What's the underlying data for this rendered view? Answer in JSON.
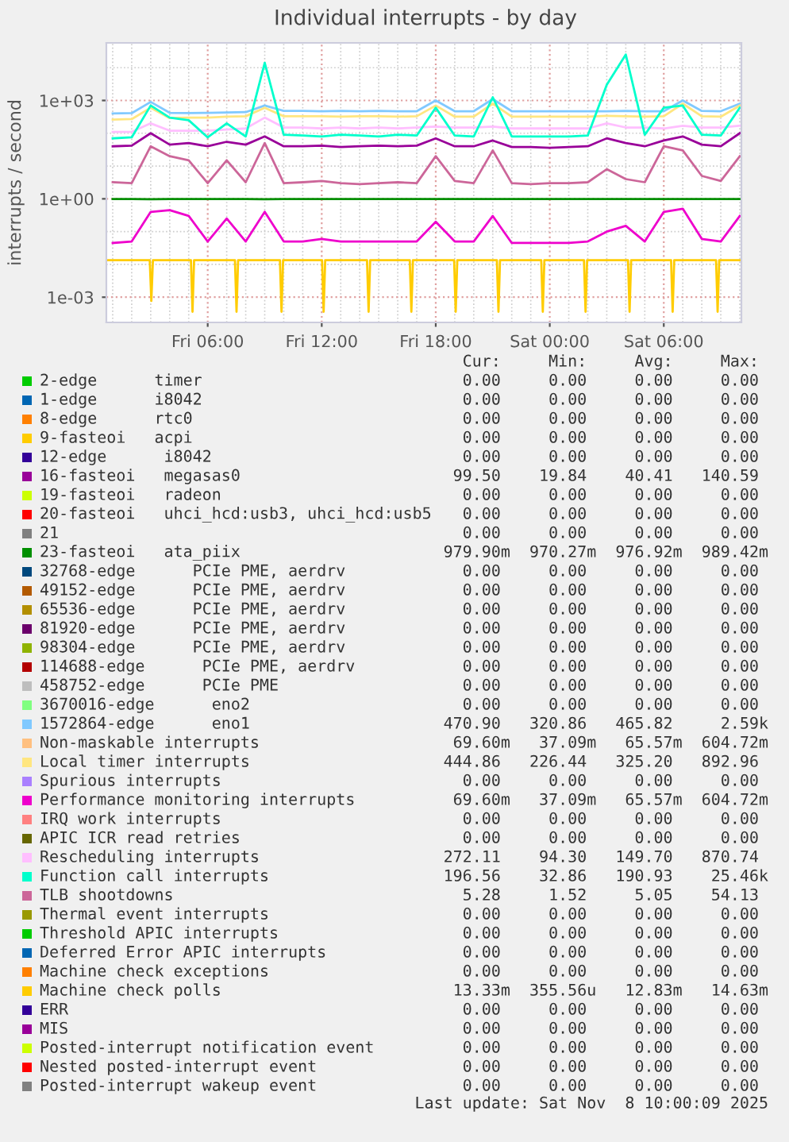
{
  "chart_data": {
    "type": "line",
    "title": "Individual interrupts - by day",
    "ylabel": "interrupts / second",
    "log": "y",
    "grid": true,
    "legend": "bottom",
    "xlim": [
      "2025-11-07T00:40",
      "2025-11-08T10:05"
    ],
    "xticks": [
      {
        "value": "2025-11-07T06:00",
        "label": "Fri 06:00"
      },
      {
        "value": "2025-11-07T12:00",
        "label": "Fri 12:00"
      },
      {
        "value": "2025-11-07T18:00",
        "label": "Fri 18:00"
      },
      {
        "value": "2025-11-08T00:00",
        "label": "Sat 00:00"
      },
      {
        "value": "2025-11-08T06:00",
        "label": "Sat 06:00"
      }
    ],
    "ylim": [
      0.00017,
      57000
    ],
    "yticks": [
      {
        "value": 0.001,
        "label": "1e-03"
      },
      {
        "value": 1,
        "label": "1e+00"
      },
      {
        "value": 1000,
        "label": "1e+03"
      }
    ],
    "x": [
      "2025-11-07T01:00",
      "2025-11-07T02:00",
      "2025-11-07T03:00",
      "2025-11-07T04:00",
      "2025-11-07T05:00",
      "2025-11-07T06:00",
      "2025-11-07T07:00",
      "2025-11-07T08:00",
      "2025-11-07T09:00",
      "2025-11-07T10:00",
      "2025-11-07T11:00",
      "2025-11-07T12:00",
      "2025-11-07T13:00",
      "2025-11-07T14:00",
      "2025-11-07T15:00",
      "2025-11-07T16:00",
      "2025-11-07T17:00",
      "2025-11-07T18:00",
      "2025-11-07T19:00",
      "2025-11-07T20:00",
      "2025-11-07T21:00",
      "2025-11-07T22:00",
      "2025-11-07T23:00",
      "2025-11-08T00:00",
      "2025-11-08T01:00",
      "2025-11-08T02:00",
      "2025-11-08T03:00",
      "2025-11-08T04:00",
      "2025-11-08T05:00",
      "2025-11-08T06:00",
      "2025-11-08T07:00",
      "2025-11-08T08:00",
      "2025-11-08T09:00",
      "2025-11-08T10:00"
    ],
    "series": [
      {
        "name": "2-edge      timer",
        "color": "#00cc00",
        "values": [
          null,
          null,
          null,
          null,
          null,
          null,
          null,
          null,
          null,
          null,
          null,
          null,
          null,
          null,
          null,
          null,
          null,
          null,
          null,
          null,
          null,
          null,
          null,
          null,
          null,
          null,
          null,
          null,
          null,
          null,
          null,
          null,
          null,
          null
        ]
      },
      {
        "name": "1-edge      i8042",
        "color": "#0066b3",
        "values": [
          null,
          null,
          null,
          null,
          null,
          null,
          null,
          null,
          null,
          null,
          null,
          null,
          null,
          null,
          null,
          null,
          null,
          null,
          null,
          null,
          null,
          null,
          null,
          null,
          null,
          null,
          null,
          null,
          null,
          null,
          null,
          null,
          null,
          null
        ]
      },
      {
        "name": "8-edge      rtc0",
        "color": "#ff8000",
        "values": [
          null,
          null,
          null,
          null,
          null,
          null,
          null,
          null,
          null,
          null,
          null,
          null,
          null,
          null,
          null,
          null,
          null,
          null,
          null,
          null,
          null,
          null,
          null,
          null,
          null,
          null,
          null,
          null,
          null,
          null,
          null,
          null,
          null,
          null
        ]
      },
      {
        "name": "9-fasteoi   acpi",
        "color": "#ffcc00",
        "values": [
          null,
          null,
          null,
          null,
          null,
          null,
          null,
          null,
          null,
          null,
          null,
          null,
          null,
          null,
          null,
          null,
          null,
          null,
          null,
          null,
          null,
          null,
          null,
          null,
          null,
          null,
          null,
          null,
          null,
          null,
          null,
          null,
          null,
          null
        ]
      },
      {
        "name": "12-edge      i8042",
        "color": "#330099",
        "values": [
          null,
          null,
          null,
          null,
          null,
          null,
          null,
          null,
          null,
          null,
          null,
          null,
          null,
          null,
          null,
          null,
          null,
          null,
          null,
          null,
          null,
          null,
          null,
          null,
          null,
          null,
          null,
          null,
          null,
          null,
          null,
          null,
          null,
          null
        ]
      },
      {
        "name": "16-fasteoi   megasas0",
        "color": "#990099",
        "values": [
          40,
          42,
          100,
          45,
          50,
          40,
          55,
          45,
          80,
          40,
          40,
          42,
          38,
          40,
          42,
          40,
          42,
          70,
          40,
          40,
          60,
          38,
          38,
          36,
          38,
          40,
          70,
          50,
          40,
          60,
          80,
          45,
          40,
          100
        ]
      },
      {
        "name": "19-fasteoi   radeon",
        "color": "#ccff00",
        "values": [
          null,
          null,
          null,
          null,
          null,
          null,
          null,
          null,
          null,
          null,
          null,
          null,
          null,
          null,
          null,
          null,
          null,
          null,
          null,
          null,
          null,
          null,
          null,
          null,
          null,
          null,
          null,
          null,
          null,
          null,
          null,
          null,
          null,
          null
        ]
      },
      {
        "name": "20-fasteoi   uhci_hcd:usb3, uhci_hcd:usb5",
        "color": "#ff0000",
        "values": [
          null,
          null,
          null,
          null,
          null,
          null,
          null,
          null,
          null,
          null,
          null,
          null,
          null,
          null,
          null,
          null,
          null,
          null,
          null,
          null,
          null,
          null,
          null,
          null,
          null,
          null,
          null,
          null,
          null,
          null,
          null,
          null,
          null,
          null
        ]
      },
      {
        "name": "21",
        "color": "#808080",
        "values": [
          null,
          null,
          null,
          null,
          null,
          null,
          null,
          null,
          null,
          null,
          null,
          null,
          null,
          null,
          null,
          null,
          null,
          null,
          null,
          null,
          null,
          null,
          null,
          null,
          null,
          null,
          null,
          null,
          null,
          null,
          null,
          null,
          null,
          null
        ]
      },
      {
        "name": "23-fasteoi   ata_piix",
        "color": "#008f00",
        "values": [
          0.98,
          0.98,
          0.97,
          0.98,
          0.98,
          0.98,
          0.98,
          0.98,
          0.97,
          0.98,
          0.98,
          0.98,
          0.98,
          0.98,
          0.98,
          0.98,
          0.98,
          0.98,
          0.98,
          0.98,
          0.98,
          0.98,
          0.98,
          0.98,
          0.98,
          0.98,
          0.98,
          0.98,
          0.98,
          0.98,
          0.98,
          0.98,
          0.98,
          0.98
        ]
      },
      {
        "name": "32768-edge      PCIe PME, aerdrv",
        "color": "#00487d",
        "values": [
          null,
          null,
          null,
          null,
          null,
          null,
          null,
          null,
          null,
          null,
          null,
          null,
          null,
          null,
          null,
          null,
          null,
          null,
          null,
          null,
          null,
          null,
          null,
          null,
          null,
          null,
          null,
          null,
          null,
          null,
          null,
          null,
          null,
          null
        ]
      },
      {
        "name": "49152-edge      PCIe PME, aerdrv",
        "color": "#b35a00",
        "values": [
          null,
          null,
          null,
          null,
          null,
          null,
          null,
          null,
          null,
          null,
          null,
          null,
          null,
          null,
          null,
          null,
          null,
          null,
          null,
          null,
          null,
          null,
          null,
          null,
          null,
          null,
          null,
          null,
          null,
          null,
          null,
          null,
          null,
          null
        ]
      },
      {
        "name": "65536-edge      PCIe PME, aerdrv",
        "color": "#b38f00",
        "values": [
          null,
          null,
          null,
          null,
          null,
          null,
          null,
          null,
          null,
          null,
          null,
          null,
          null,
          null,
          null,
          null,
          null,
          null,
          null,
          null,
          null,
          null,
          null,
          null,
          null,
          null,
          null,
          null,
          null,
          null,
          null,
          null,
          null,
          null
        ]
      },
      {
        "name": "81920-edge      PCIe PME, aerdrv",
        "color": "#6b006b",
        "values": [
          null,
          null,
          null,
          null,
          null,
          null,
          null,
          null,
          null,
          null,
          null,
          null,
          null,
          null,
          null,
          null,
          null,
          null,
          null,
          null,
          null,
          null,
          null,
          null,
          null,
          null,
          null,
          null,
          null,
          null,
          null,
          null,
          null,
          null
        ]
      },
      {
        "name": "98304-edge      PCIe PME, aerdrv",
        "color": "#8fb300",
        "values": [
          null,
          null,
          null,
          null,
          null,
          null,
          null,
          null,
          null,
          null,
          null,
          null,
          null,
          null,
          null,
          null,
          null,
          null,
          null,
          null,
          null,
          null,
          null,
          null,
          null,
          null,
          null,
          null,
          null,
          null,
          null,
          null,
          null,
          null
        ]
      },
      {
        "name": "114688-edge      PCIe PME, aerdrv",
        "color": "#b30000",
        "values": [
          null,
          null,
          null,
          null,
          null,
          null,
          null,
          null,
          null,
          null,
          null,
          null,
          null,
          null,
          null,
          null,
          null,
          null,
          null,
          null,
          null,
          null,
          null,
          null,
          null,
          null,
          null,
          null,
          null,
          null,
          null,
          null,
          null,
          null
        ]
      },
      {
        "name": "458752-edge      PCIe PME",
        "color": "#bebebe",
        "values": [
          null,
          null,
          null,
          null,
          null,
          null,
          null,
          null,
          null,
          null,
          null,
          null,
          null,
          null,
          null,
          null,
          null,
          null,
          null,
          null,
          null,
          null,
          null,
          null,
          null,
          null,
          null,
          null,
          null,
          null,
          null,
          null,
          null,
          null
        ]
      },
      {
        "name": "3670016-edge      eno2",
        "color": "#80ff80",
        "values": [
          null,
          null,
          null,
          null,
          null,
          null,
          null,
          null,
          null,
          null,
          null,
          null,
          null,
          null,
          null,
          null,
          null,
          null,
          null,
          null,
          null,
          null,
          null,
          null,
          null,
          null,
          null,
          null,
          null,
          null,
          null,
          null,
          null,
          null
        ]
      },
      {
        "name": "1572864-edge      eno1",
        "color": "#80c9ff",
        "values": [
          400,
          410,
          900,
          420,
          410,
          420,
          430,
          440,
          700,
          480,
          480,
          470,
          480,
          470,
          480,
          470,
          470,
          1000,
          470,
          470,
          1100,
          470,
          470,
          470,
          470,
          470,
          470,
          480,
          470,
          470,
          1000,
          480,
          470,
          800
        ]
      },
      {
        "name": "Non-maskable interrupts",
        "color": "#ffc080",
        "values": [
          null,
          null,
          null,
          null,
          null,
          null,
          null,
          null,
          null,
          null,
          null,
          null,
          null,
          null,
          null,
          null,
          null,
          null,
          null,
          null,
          null,
          null,
          null,
          null,
          null,
          null,
          null,
          null,
          null,
          null,
          null,
          null,
          null,
          null
        ]
      },
      {
        "name": "Local timer interrupts",
        "color": "#ffe680",
        "values": [
          260,
          270,
          600,
          290,
          300,
          300,
          320,
          330,
          600,
          330,
          330,
          330,
          320,
          330,
          330,
          320,
          330,
          700,
          320,
          320,
          800,
          320,
          320,
          320,
          320,
          320,
          340,
          330,
          320,
          330,
          800,
          330,
          320,
          700
        ]
      },
      {
        "name": "Spurious interrupts",
        "color": "#aa80ff",
        "values": [
          null,
          null,
          null,
          null,
          null,
          null,
          null,
          null,
          null,
          null,
          null,
          null,
          null,
          null,
          null,
          null,
          null,
          null,
          null,
          null,
          null,
          null,
          null,
          null,
          null,
          null,
          null,
          null,
          null,
          null,
          null,
          null,
          null,
          null
        ]
      },
      {
        "name": "Performance monitoring interrupts",
        "color": "#ee00cc",
        "values": [
          0.045,
          0.05,
          0.4,
          0.45,
          0.3,
          0.05,
          0.25,
          0.05,
          0.4,
          0.05,
          0.05,
          0.06,
          0.05,
          0.05,
          0.05,
          0.05,
          0.05,
          0.2,
          0.05,
          0.05,
          0.3,
          0.045,
          0.045,
          0.045,
          0.045,
          0.05,
          0.1,
          0.15,
          0.05,
          0.4,
          0.5,
          0.06,
          0.05,
          0.3
        ]
      },
      {
        "name": "IRQ work interrupts",
        "color": "#ff8080",
        "values": [
          null,
          null,
          null,
          null,
          null,
          null,
          null,
          null,
          null,
          null,
          null,
          null,
          null,
          null,
          null,
          null,
          null,
          null,
          null,
          null,
          null,
          null,
          null,
          null,
          null,
          null,
          null,
          null,
          null,
          null,
          null,
          null,
          null,
          null
        ]
      },
      {
        "name": "APIC ICR read retries",
        "color": "#666600",
        "values": [
          null,
          null,
          null,
          null,
          null,
          null,
          null,
          null,
          null,
          null,
          null,
          null,
          null,
          null,
          null,
          null,
          null,
          null,
          null,
          null,
          null,
          null,
          null,
          null,
          null,
          null,
          null,
          null,
          null,
          null,
          null,
          null,
          null,
          null
        ]
      },
      {
        "name": "Rescheduling interrupts",
        "color": "#ffbfff",
        "values": [
          110,
          110,
          200,
          120,
          120,
          120,
          130,
          140,
          300,
          150,
          150,
          140,
          150,
          140,
          150,
          140,
          150,
          160,
          150,
          150,
          160,
          140,
          140,
          140,
          140,
          140,
          200,
          150,
          150,
          140,
          170,
          150,
          150,
          170
        ]
      },
      {
        "name": "Function call interrupts",
        "color": "#00ffcc",
        "values": [
          70,
          75,
          700,
          300,
          250,
          75,
          200,
          80,
          14000,
          90,
          85,
          80,
          90,
          85,
          80,
          90,
          85,
          600,
          85,
          80,
          1250,
          80,
          80,
          80,
          80,
          85,
          3000,
          25000,
          90,
          600,
          700,
          90,
          85,
          600
        ]
      },
      {
        "name": "TLB shootdowns",
        "color": "#cc6699",
        "values": [
          3.2,
          3.0,
          40,
          20,
          15,
          3.0,
          15,
          3.2,
          50,
          3.0,
          3.2,
          3.5,
          3.0,
          2.8,
          3.0,
          3.2,
          3.0,
          20,
          3.5,
          3.0,
          30,
          3.0,
          2.8,
          3.0,
          3.0,
          3.2,
          8,
          4,
          3.2,
          40,
          30,
          5,
          3.5,
          20
        ]
      },
      {
        "name": "Thermal event interrupts",
        "color": "#999900",
        "values": [
          null,
          null,
          null,
          null,
          null,
          null,
          null,
          null,
          null,
          null,
          null,
          null,
          null,
          null,
          null,
          null,
          null,
          null,
          null,
          null,
          null,
          null,
          null,
          null,
          null,
          null,
          null,
          null,
          null,
          null,
          null,
          null,
          null,
          null
        ]
      },
      {
        "name": "Threshold APIC interrupts",
        "color": "#00cc00",
        "values": [
          null,
          null,
          null,
          null,
          null,
          null,
          null,
          null,
          null,
          null,
          null,
          null,
          null,
          null,
          null,
          null,
          null,
          null,
          null,
          null,
          null,
          null,
          null,
          null,
          null,
          null,
          null,
          null,
          null,
          null,
          null,
          null,
          null,
          null
        ]
      },
      {
        "name": "Deferred Error APIC interrupts",
        "color": "#0066b3",
        "values": [
          null,
          null,
          null,
          null,
          null,
          null,
          null,
          null,
          null,
          null,
          null,
          null,
          null,
          null,
          null,
          null,
          null,
          null,
          null,
          null,
          null,
          null,
          null,
          null,
          null,
          null,
          null,
          null,
          null,
          null,
          null,
          null,
          null,
          null
        ]
      },
      {
        "name": "Machine check exceptions",
        "color": "#ff8000",
        "values": [
          null,
          null,
          null,
          null,
          null,
          null,
          null,
          null,
          null,
          null,
          null,
          null,
          null,
          null,
          null,
          null,
          null,
          null,
          null,
          null,
          null,
          null,
          null,
          null,
          null,
          null,
          null,
          null,
          null,
          null,
          null,
          null,
          null,
          null
        ]
      },
      {
        "name": "Machine check polls",
        "color": "#ffcc00",
        "x": [
          "2025-11-07T00:40",
          "2025-11-07T02:57",
          "2025-11-07T03:02",
          "2025-11-07T03:07",
          "2025-11-07T05:07",
          "2025-11-07T05:12",
          "2025-11-07T05:17",
          "2025-11-07T07:26",
          "2025-11-07T07:31",
          "2025-11-07T07:36",
          "2025-11-07T09:48",
          "2025-11-07T09:53",
          "2025-11-07T09:58",
          "2025-11-07T12:01",
          "2025-11-07T12:06",
          "2025-11-07T12:11",
          "2025-11-07T14:23",
          "2025-11-07T14:28",
          "2025-11-07T14:33",
          "2025-11-07T16:38",
          "2025-11-07T16:43",
          "2025-11-07T16:48",
          "2025-11-07T18:58",
          "2025-11-07T19:03",
          "2025-11-07T19:08",
          "2025-11-07T21:13",
          "2025-11-07T21:18",
          "2025-11-07T21:23",
          "2025-11-07T23:33",
          "2025-11-07T23:38",
          "2025-11-07T23:43",
          "2025-11-08T01:48",
          "2025-11-08T01:53",
          "2025-11-08T01:58",
          "2025-11-08T04:07",
          "2025-11-08T04:12",
          "2025-11-08T04:17",
          "2025-11-08T06:23",
          "2025-11-08T06:28",
          "2025-11-08T06:33",
          "2025-11-08T08:45",
          "2025-11-08T08:50",
          "2025-11-08T08:55",
          "2025-11-08T10:00"
        ],
        "values": [
          0.0135,
          0.0135,
          0.00077,
          0.0135,
          0.0135,
          0.00036,
          0.0135,
          0.0135,
          0.00036,
          0.0135,
          0.0135,
          0.00036,
          0.0135,
          0.0135,
          0.00036,
          0.0135,
          0.0135,
          0.00036,
          0.0135,
          0.0135,
          0.00036,
          0.0135,
          0.0135,
          0.00036,
          0.0135,
          0.0135,
          0.00036,
          0.0135,
          0.0135,
          0.00036,
          0.0135,
          0.0135,
          0.00036,
          0.0135,
          0.0135,
          0.00036,
          0.0135,
          0.0135,
          0.00036,
          0.0135,
          0.0135,
          0.00036,
          0.0135,
          0.0135
        ]
      },
      {
        "name": "ERR",
        "color": "#330099",
        "values": [
          null,
          null,
          null,
          null,
          null,
          null,
          null,
          null,
          null,
          null,
          null,
          null,
          null,
          null,
          null,
          null,
          null,
          null,
          null,
          null,
          null,
          null,
          null,
          null,
          null,
          null,
          null,
          null,
          null,
          null,
          null,
          null,
          null,
          null
        ]
      },
      {
        "name": "MIS",
        "color": "#990099",
        "values": [
          null,
          null,
          null,
          null,
          null,
          null,
          null,
          null,
          null,
          null,
          null,
          null,
          null,
          null,
          null,
          null,
          null,
          null,
          null,
          null,
          null,
          null,
          null,
          null,
          null,
          null,
          null,
          null,
          null,
          null,
          null,
          null,
          null,
          null
        ]
      },
      {
        "name": "Posted-interrupt notification event",
        "color": "#ccff00",
        "values": [
          null,
          null,
          null,
          null,
          null,
          null,
          null,
          null,
          null,
          null,
          null,
          null,
          null,
          null,
          null,
          null,
          null,
          null,
          null,
          null,
          null,
          null,
          null,
          null,
          null,
          null,
          null,
          null,
          null,
          null,
          null,
          null,
          null,
          null
        ]
      },
      {
        "name": "Nested posted-interrupt event",
        "color": "#ff0000",
        "values": [
          null,
          null,
          null,
          null,
          null,
          null,
          null,
          null,
          null,
          null,
          null,
          null,
          null,
          null,
          null,
          null,
          null,
          null,
          null,
          null,
          null,
          null,
          null,
          null,
          null,
          null,
          null,
          null,
          null,
          null,
          null,
          null,
          null,
          null
        ]
      },
      {
        "name": "Posted-interrupt wakeup event",
        "color": "#808080",
        "values": [
          null,
          null,
          null,
          null,
          null,
          null,
          null,
          null,
          null,
          null,
          null,
          null,
          null,
          null,
          null,
          null,
          null,
          null,
          null,
          null,
          null,
          null,
          null,
          null,
          null,
          null,
          null,
          null,
          null,
          null,
          null,
          null,
          null,
          null
        ]
      }
    ],
    "annotations": [
      "Cur:     Min:     Avg:     Max:",
      "0.00     0.00     0.00     0.00",
      "0.00     0.00     0.00     0.00",
      "0.00     0.00     0.00     0.00",
      "0.00     0.00     0.00     0.00",
      "0.00     0.00     0.00     0.00",
      "99.50    19.84    40.41   140.59",
      "0.00     0.00     0.00     0.00",
      "0.00     0.00     0.00     0.00",
      "0.00     0.00     0.00     0.00",
      "979.90m  970.27m  976.92m  989.42m",
      "0.00     0.00     0.00     0.00",
      "0.00     0.00     0.00     0.00",
      "0.00     0.00     0.00     0.00",
      "0.00     0.00     0.00     0.00",
      "0.00     0.00     0.00     0.00",
      "0.00     0.00     0.00     0.00",
      "0.00     0.00     0.00     0.00",
      "0.00     0.00     0.00     0.00",
      "470.90   320.86   465.82     2.59k",
      "69.60m   37.09m   65.57m  604.72m",
      "444.86   226.44   325.20   892.96",
      "0.00     0.00     0.00     0.00",
      "69.60m   37.09m   65.57m  604.72m",
      "0.00     0.00     0.00     0.00",
      "0.00     0.00     0.00     0.00",
      "272.11    94.30   149.70   870.74",
      "196.56    32.86   190.93    25.46k",
      "5.28     1.52     5.05    54.13",
      "0.00     0.00     0.00     0.00",
      "0.00     0.00     0.00     0.00",
      "0.00     0.00     0.00     0.00",
      "0.00     0.00     0.00     0.00",
      "13.33m  355.56u   12.83m   14.63m",
      "0.00     0.00     0.00     0.00",
      "0.00     0.00     0.00     0.00",
      "0.00     0.00     0.00     0.00",
      "0.00     0.00     0.00     0.00",
      "0.00     0.00     0.00     0.00",
      "Last update: Sat Nov  8 10:00:09 2025"
    ]
  }
}
